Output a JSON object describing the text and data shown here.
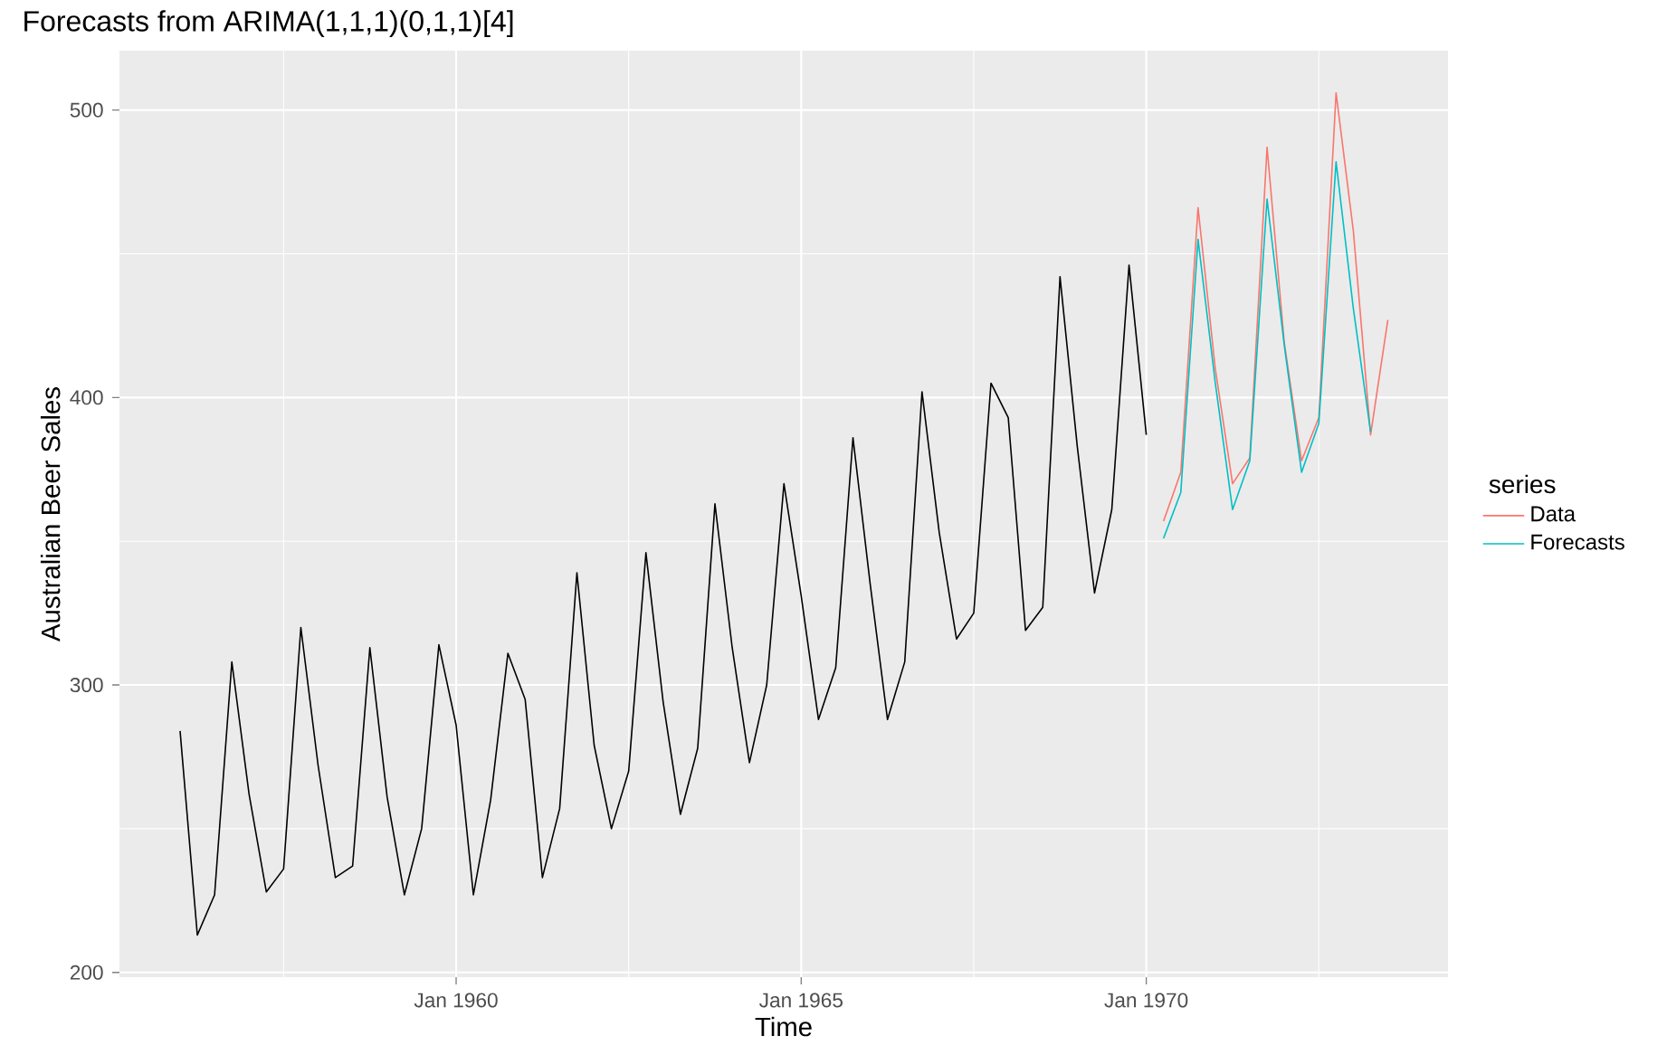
{
  "chart_data": {
    "type": "line",
    "title": "Forecasts from ARIMA(1,1,1)(0,1,1)[4]",
    "xlabel": "Time",
    "ylabel": "Australian Beer Sales",
    "legend_title": "series",
    "series": [
      {
        "color": "#000000",
        "x": [
          "1956-01",
          "1956-04",
          "1956-07",
          "1956-10",
          "1957-01",
          "1957-04",
          "1957-07",
          "1957-10",
          "1958-01",
          "1958-04",
          "1958-07",
          "1958-10",
          "1959-01",
          "1959-04",
          "1959-07",
          "1959-10",
          "1960-01",
          "1960-04",
          "1960-07",
          "1960-10",
          "1961-01",
          "1961-04",
          "1961-07",
          "1961-10",
          "1962-01",
          "1962-04",
          "1962-07",
          "1962-10",
          "1963-01",
          "1963-04",
          "1963-07",
          "1963-10",
          "1964-01",
          "1964-04",
          "1964-07",
          "1964-10",
          "1965-01",
          "1965-04",
          "1965-07",
          "1965-10",
          "1966-01",
          "1966-04",
          "1966-07",
          "1966-10",
          "1967-01",
          "1967-04",
          "1967-07",
          "1967-10",
          "1968-01",
          "1968-04",
          "1968-07",
          "1968-10",
          "1969-01",
          "1969-04",
          "1969-07",
          "1969-10",
          "1970-01"
        ],
        "values": [
          284,
          213,
          227,
          308,
          262,
          228,
          236,
          320,
          272,
          233,
          237,
          313,
          261,
          227,
          250,
          314,
          286,
          227,
          260,
          311,
          295,
          233,
          257,
          339,
          279,
          250,
          270,
          346,
          294,
          255,
          278,
          363,
          313,
          273,
          300,
          370,
          331,
          288,
          306,
          386,
          335,
          288,
          308,
          402,
          353,
          316,
          325,
          405,
          393,
          319,
          327,
          442,
          383,
          332,
          361,
          446,
          387
        ]
      },
      {
        "name": "Data",
        "color": "#f8766d",
        "x": [
          "1970-04",
          "1970-07",
          "1970-10",
          "1971-01",
          "1971-04",
          "1971-07",
          "1971-10",
          "1972-01",
          "1972-04",
          "1972-07",
          "1972-10",
          "1973-01",
          "1973-04",
          "1973-07"
        ],
        "values": [
          357,
          374,
          466,
          410,
          370,
          379,
          487,
          419,
          378,
          393,
          506,
          458,
          387,
          427
        ]
      },
      {
        "name": "Forecasts",
        "color": "#00bfc4",
        "x": [
          "1970-04",
          "1970-07",
          "1970-10",
          "1971-01",
          "1971-04",
          "1971-07",
          "1971-10",
          "1972-01",
          "1972-04",
          "1972-07",
          "1972-10",
          "1973-01",
          "1973-04"
        ],
        "values": [
          351,
          367,
          455,
          405,
          361,
          378,
          469,
          418,
          374,
          391,
          482,
          431,
          388
        ]
      }
    ],
    "xlim": [
      "1955-02-15",
      "1974-05-15"
    ],
    "ylim": [
      198.35,
      520.65
    ],
    "xticks": [
      {
        "value": "1957-07",
        "label": null
      },
      {
        "value": "1960-01",
        "label": "Jan 1960"
      },
      {
        "value": "1962-07",
        "label": null
      },
      {
        "value": "1965-01",
        "label": "Jan 1965"
      },
      {
        "value": "1967-07",
        "label": null
      },
      {
        "value": "1970-01",
        "label": "Jan 1970"
      },
      {
        "value": "1972-07",
        "label": null
      }
    ],
    "yticks": [
      200,
      {
        "value": 250,
        "label": null
      },
      300,
      {
        "value": 350,
        "label": null
      },
      400,
      {
        "value": 450,
        "label": null
      },
      500
    ],
    "grid": true,
    "legend": "right",
    "line_style": "solid"
  }
}
